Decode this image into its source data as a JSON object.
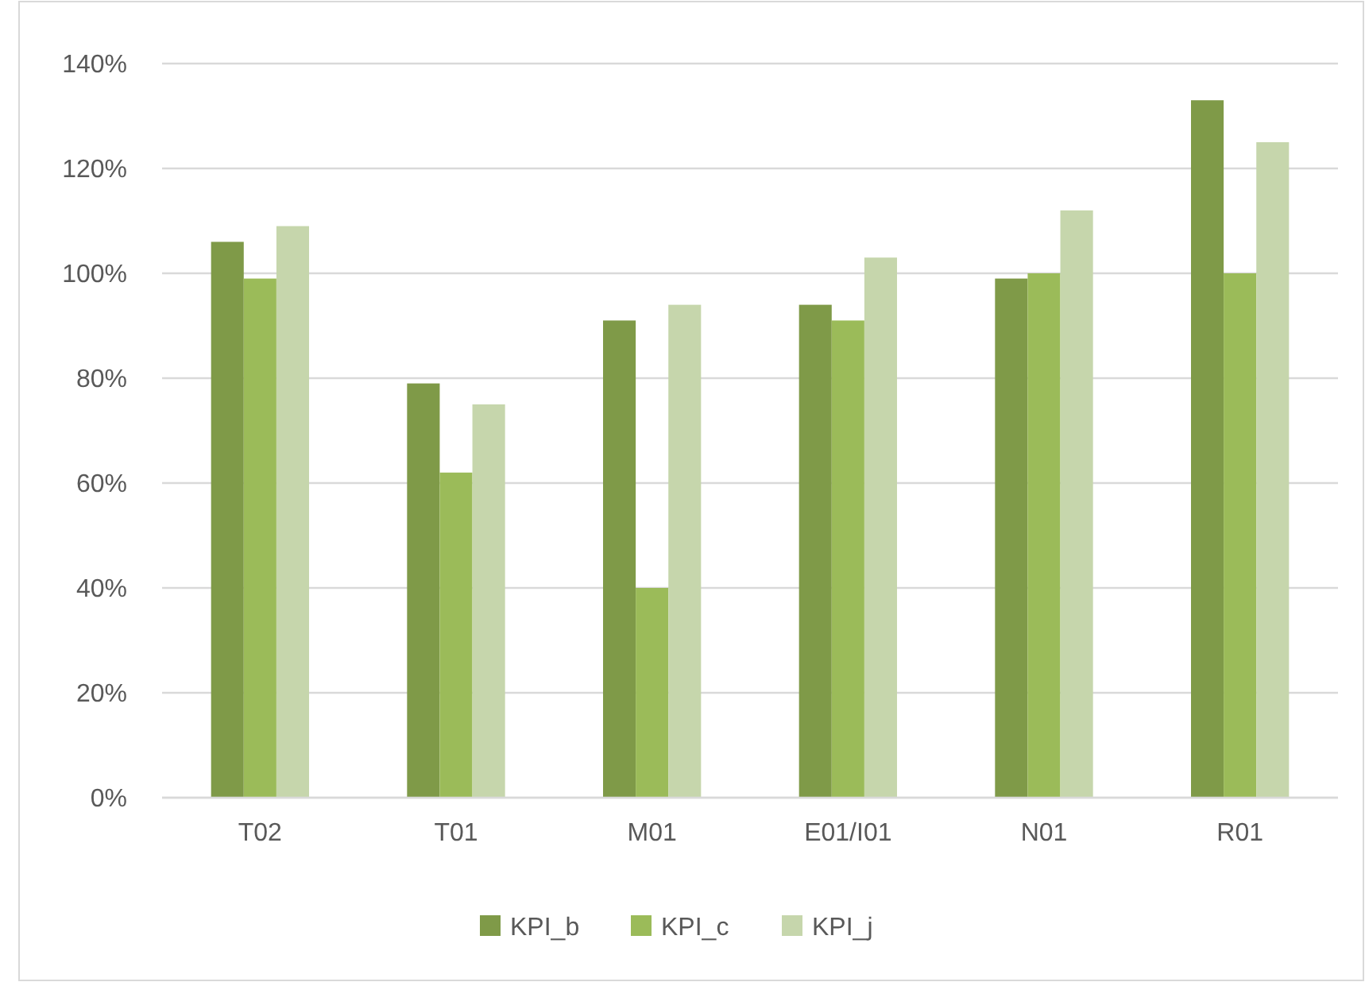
{
  "chart_data": {
    "type": "bar",
    "categories": [
      "T02",
      "T01",
      "M01",
      "E01/I01",
      "N01",
      "R01"
    ],
    "series": [
      {
        "name": "KPI_b",
        "color": "#7f9a48",
        "values": [
          106,
          79,
          91,
          94,
          99,
          133
        ]
      },
      {
        "name": "KPI_c",
        "color": "#9bbb59",
        "values": [
          99,
          62,
          40,
          91,
          100,
          100
        ]
      },
      {
        "name": "KPI_j",
        "color": "#c6d6ac",
        "values": [
          109,
          75,
          94,
          103,
          112,
          125
        ]
      }
    ],
    "ylim": [
      0,
      140
    ],
    "yticks": [
      {
        "value": 0,
        "label": "0%"
      },
      {
        "value": 20,
        "label": "20%"
      },
      {
        "value": 40,
        "label": "40%"
      },
      {
        "value": 60,
        "label": "60%"
      },
      {
        "value": 80,
        "label": "80%"
      },
      {
        "value": 100,
        "label": "100%"
      },
      {
        "value": 120,
        "label": "120%"
      },
      {
        "value": 140,
        "label": "140%"
      }
    ],
    "grid": "y",
    "legend": "bottom"
  }
}
